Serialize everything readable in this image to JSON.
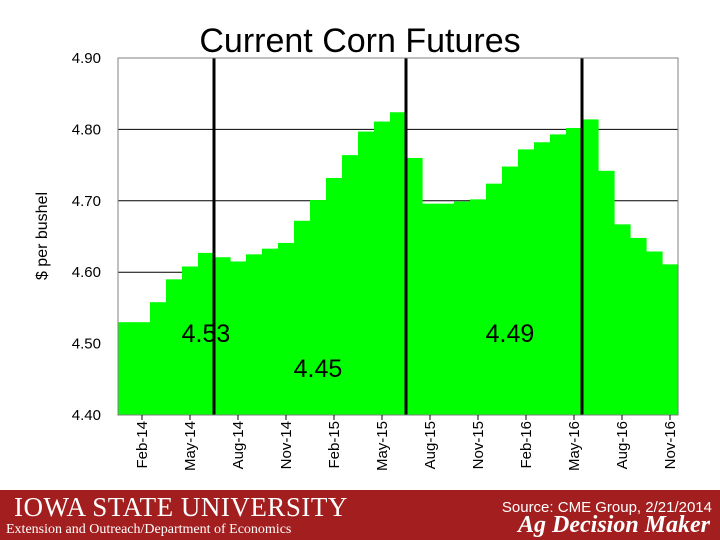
{
  "chart_data": {
    "type": "bar",
    "title": "Current Corn Futures",
    "ylabel": "$ per bushel",
    "ylim": [
      4.4,
      4.9
    ],
    "yticks": [
      "4.90",
      "4.80",
      "4.70",
      "4.60",
      "4.50",
      "4.40"
    ],
    "xticks": [
      "Feb-14",
      "May-14",
      "Aug-14",
      "Nov-14",
      "Feb-15",
      "May-15",
      "Aug-15",
      "Nov-15",
      "Feb-16",
      "May-16",
      "Aug-16",
      "Nov-16"
    ],
    "grid": true,
    "bar_color": "#00ff00",
    "values": [
      4.53,
      4.53,
      4.558,
      4.59,
      4.608,
      4.627,
      4.621,
      4.615,
      4.625,
      4.633,
      4.641,
      4.672,
      4.701,
      4.732,
      4.764,
      4.797,
      4.811,
      4.824,
      4.76,
      4.696,
      4.696,
      4.699,
      4.702,
      4.724,
      4.748,
      4.772,
      4.782,
      4.793,
      4.802,
      4.814,
      4.742,
      4.667,
      4.648,
      4.629,
      4.611
    ],
    "vertical_lines_after_bar": [
      6,
      18,
      29
    ],
    "annotations": [
      {
        "text": "4.53",
        "bar": 5
      },
      {
        "text": "4.45",
        "bar": 12
      },
      {
        "text": "4.49",
        "bar": 24
      }
    ]
  },
  "footer": {
    "university": "IOWA STATE UNIVERSITY",
    "department": "Extension and Outreach/Department of Economics",
    "source": "Source: CME Group, 2/21/2014",
    "brand": "Ag Decision Maker"
  },
  "colors": {
    "footer_bg": "#a31f1f",
    "bars": "#00ff00"
  }
}
